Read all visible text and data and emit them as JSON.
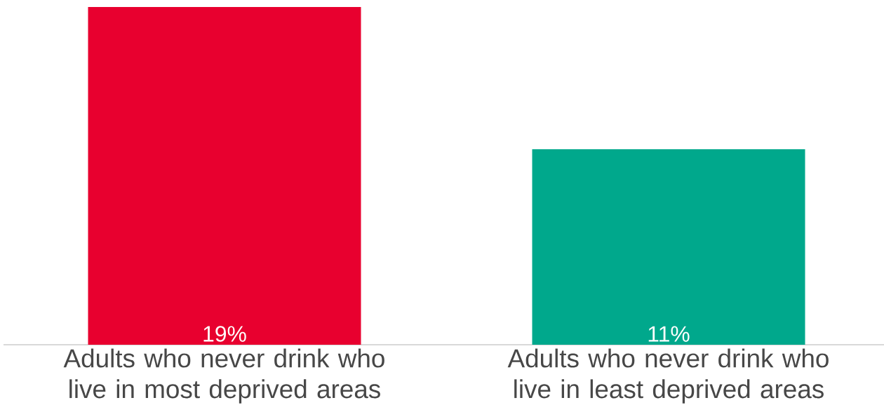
{
  "chart_data": {
    "type": "bar",
    "categories": [
      "Adults who never drink who live in most deprived areas",
      "Adults who never drink who live in least deprived areas"
    ],
    "values": [
      19,
      11
    ],
    "colors": [
      "#e8002f",
      "#00a88c"
    ],
    "value_labels": [
      "19%",
      "11%"
    ]
  }
}
